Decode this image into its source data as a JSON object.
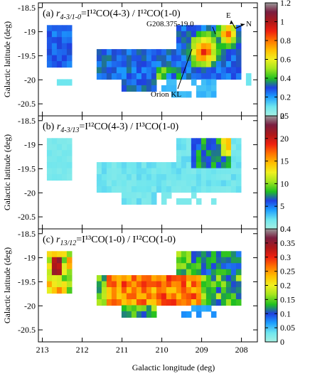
{
  "figure": {
    "xlabel": "Galactic longitude (deg)",
    "ylabel": "Galactic latitude (deg)"
  },
  "annotations": {
    "region_name": "G208.375-19.0",
    "source_name": "Orion KL",
    "compass_east": "E",
    "compass_north": "N"
  },
  "chart_data": [
    {
      "type": "heatmap",
      "panel_label": "(a)",
      "title_symbol": "r",
      "title_subscript": "4-3/1-0",
      "title_ratio": "=I¹²CO(4-3) / I¹²CO(1-0)",
      "x_ticks": [
        "213",
        "212",
        "211",
        "210",
        "209",
        "208"
      ],
      "y_ticks": [
        "-18.5",
        "-19",
        "-19.5",
        "-20",
        "-20.5"
      ],
      "xlim": [
        213.1,
        207.6
      ],
      "ylim": [
        -20.75,
        -18.4
      ],
      "colorbar": {
        "min": 0,
        "max": 1.2,
        "ticks": [
          "0",
          "0.2",
          "0.4",
          "0.6",
          "0.8",
          "1",
          "1.2"
        ]
      },
      "map_level_description": "moderate ratios across the cloud, peak near Orion KL and G208.375-19.0"
    },
    {
      "type": "heatmap",
      "panel_label": "(b)",
      "title_symbol": "r",
      "title_subscript": "4-3/13",
      "title_ratio": "=I¹²CO(4-3) / I¹³CO(1-0)",
      "x_ticks": [
        "213",
        "212",
        "211",
        "210",
        "209",
        "208"
      ],
      "y_ticks": [
        "-18.5",
        "-19",
        "-19.5",
        "-20",
        "-20.5"
      ],
      "xlim": [
        213.1,
        207.6
      ],
      "ylim": [
        -20.75,
        -18.4
      ],
      "colorbar": {
        "min": 0,
        "max": 25,
        "ticks": [
          "0",
          "5",
          "10",
          "15",
          "20",
          "25"
        ]
      }
    },
    {
      "type": "heatmap",
      "panel_label": "(c)",
      "title_symbol": "r",
      "title_subscript": "13/12",
      "title_ratio": "=I¹³CO(1-0) / I¹²CO(1-0)",
      "x_ticks": [
        "213",
        "212",
        "211",
        "210",
        "209",
        "208"
      ],
      "y_ticks": [
        "-18.5",
        "-19",
        "-19.5",
        "-20",
        "-20.5"
      ],
      "xlim": [
        213.1,
        207.6
      ],
      "ylim": [
        -20.75,
        -18.4
      ],
      "colorbar": {
        "min": 0,
        "max": 0.4,
        "ticks": [
          "0",
          "0.05",
          "0.1",
          "0.15",
          "0.2",
          "0.25",
          "0.3",
          "0.35",
          "0.4"
        ]
      }
    }
  ]
}
